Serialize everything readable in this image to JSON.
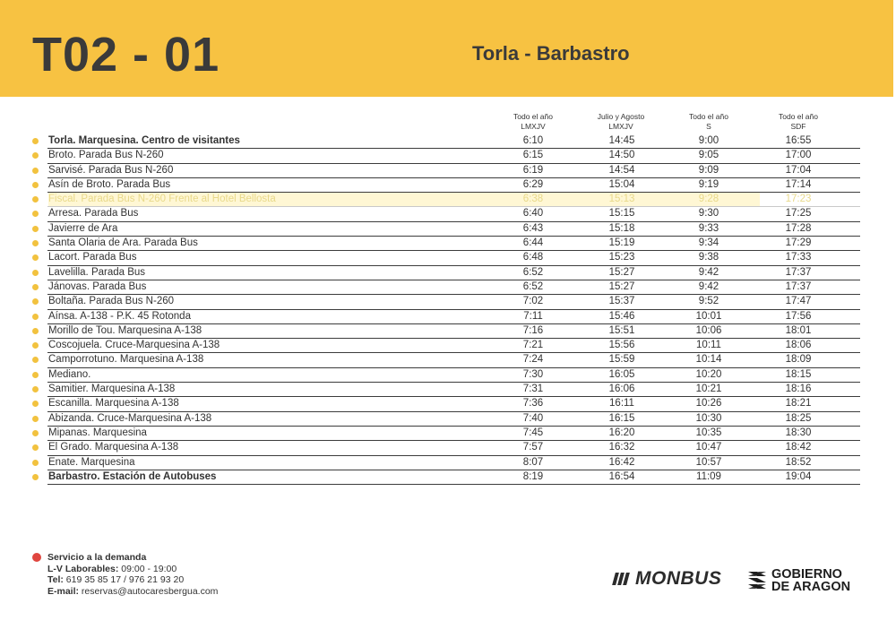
{
  "header": {
    "code": "T02 - 01",
    "route": "Torla - Barbastro"
  },
  "columns": [
    {
      "line1": "Todo el año",
      "line2": "LMXJV"
    },
    {
      "line1": "Julio y Agosto",
      "line2": "LMXJV"
    },
    {
      "line1": "Todo el año",
      "line2": "S"
    },
    {
      "line1": "Todo el año",
      "line2": "SDF"
    }
  ],
  "rows": [
    {
      "stop": "Torla. Marquesina. Centro de visitantes",
      "times": [
        "6:10",
        "14:45",
        "9:00",
        "16:55"
      ],
      "bold": true
    },
    {
      "stop": "Broto. Parada Bus N-260",
      "times": [
        "6:15",
        "14:50",
        "9:05",
        "17:00"
      ]
    },
    {
      "stop": "Sarvisé. Parada Bus N-260",
      "times": [
        "6:19",
        "14:54",
        "9:09",
        "17:04"
      ]
    },
    {
      "stop": "Asín de Broto. Parada Bus",
      "times": [
        "6:29",
        "15:04",
        "9:19",
        "17:14"
      ]
    },
    {
      "stop": "Fiscal. Parada Bus N-260 Frente al Hotel Bellosta",
      "times": [
        "6:38",
        "15:13",
        "9:28",
        "17:23"
      ],
      "faded": true
    },
    {
      "stop": "Arresa. Parada Bus",
      "times": [
        "6:40",
        "15:15",
        "9:30",
        "17:25"
      ]
    },
    {
      "stop": "Javierre de Ara",
      "times": [
        "6:43",
        "15:18",
        "9:33",
        "17:28"
      ]
    },
    {
      "stop": "Santa Olaria de Ara. Parada Bus",
      "times": [
        "6:44",
        "15:19",
        "9:34",
        "17:29"
      ]
    },
    {
      "stop": "Lacort. Parada Bus",
      "times": [
        "6:48",
        "15:23",
        "9:38",
        "17:33"
      ]
    },
    {
      "stop": "Lavelilla. Parada Bus",
      "times": [
        "6:52",
        "15:27",
        "9:42",
        "17:37"
      ]
    },
    {
      "stop": "Jánovas. Parada Bus",
      "times": [
        "6:52",
        "15:27",
        "9:42",
        "17:37"
      ]
    },
    {
      "stop": "Boltaña. Parada Bus N-260",
      "times": [
        "7:02",
        "15:37",
        "9:52",
        "17:47"
      ]
    },
    {
      "stop": "Aínsa. A-138 - P.K. 45 Rotonda",
      "times": [
        "7:11",
        "15:46",
        "10:01",
        "17:56"
      ]
    },
    {
      "stop": "Morillo de Tou. Marquesina A-138",
      "times": [
        "7:16",
        "15:51",
        "10:06",
        "18:01"
      ]
    },
    {
      "stop": "Coscojuela. Cruce-Marquesina A-138",
      "times": [
        "7:21",
        "15:56",
        "10:11",
        "18:06"
      ]
    },
    {
      "stop": "Camporrotuno. Marquesina A-138",
      "times": [
        "7:24",
        "15:59",
        "10:14",
        "18:09"
      ]
    },
    {
      "stop": "Mediano.",
      "times": [
        "7:30",
        "16:05",
        "10:20",
        "18:15"
      ]
    },
    {
      "stop": "Samitier. Marquesina A-138",
      "times": [
        "7:31",
        "16:06",
        "10:21",
        "18:16"
      ]
    },
    {
      "stop": "Escanilla. Marquesina A-138",
      "times": [
        "7:36",
        "16:11",
        "10:26",
        "18:21"
      ]
    },
    {
      "stop": "Abizanda. Cruce-Marquesina A-138",
      "times": [
        "7:40",
        "16:15",
        "10:30",
        "18:25"
      ]
    },
    {
      "stop": "Mipanas. Marquesina",
      "times": [
        "7:45",
        "16:20",
        "10:35",
        "18:30"
      ]
    },
    {
      "stop": "El Grado. Marquesina A-138",
      "times": [
        "7:57",
        "16:32",
        "10:47",
        "18:42"
      ]
    },
    {
      "stop": "Enate. Marquesina",
      "times": [
        "8:07",
        "16:42",
        "10:57",
        "18:52"
      ]
    },
    {
      "stop": "Barbastro. Estación de Autobuses",
      "times": [
        "8:19",
        "16:54",
        "11:09",
        "19:04"
      ],
      "bold": true
    }
  ],
  "service": {
    "title": "Servicio a la demanda",
    "hours_label": "L-V Laborables:",
    "hours_value": " 09:00 - 19:00",
    "tel_label": "Tel:",
    "tel_value": " 619 35 85 17 / 976 21 93 20",
    "email_label": "E-mail:",
    "email_value": " reservas@autocaresbergua.com"
  },
  "logos": {
    "monbus": "MONBUS",
    "gobierno_line1": "GOBIERNO",
    "gobierno_line2": "DE ARAGON"
  },
  "colors": {
    "header_bg": "#f7c242",
    "stop_dot": "#f2c23f",
    "demand_dot": "#e0463f"
  }
}
